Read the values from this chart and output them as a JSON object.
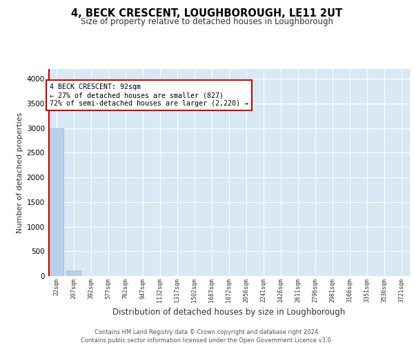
{
  "title": "4, BECK CRESCENT, LOUGHBOROUGH, LE11 2UT",
  "subtitle": "Size of property relative to detached houses in Loughborough",
  "xlabel": "Distribution of detached houses by size in Loughborough",
  "ylabel": "Number of detached properties",
  "bar_color": "#b8d0e8",
  "bar_edge_color": "#90b8d8",
  "categories": [
    "22sqm",
    "207sqm",
    "392sqm",
    "577sqm",
    "762sqm",
    "947sqm",
    "1132sqm",
    "1317sqm",
    "1502sqm",
    "1687sqm",
    "1872sqm",
    "2056sqm",
    "2241sqm",
    "2426sqm",
    "2611sqm",
    "2796sqm",
    "2981sqm",
    "3166sqm",
    "3351sqm",
    "3536sqm",
    "3721sqm"
  ],
  "values": [
    3000,
    110,
    5,
    2,
    1,
    1,
    1,
    0,
    0,
    0,
    0,
    0,
    0,
    0,
    0,
    0,
    0,
    0,
    0,
    0,
    0
  ],
  "ylim": [
    0,
    4200
  ],
  "yticks": [
    0,
    500,
    1000,
    1500,
    2000,
    2500,
    3000,
    3500,
    4000
  ],
  "annotation_title": "4 BECK CRESCENT: 92sqm",
  "annotation_line1": "← 27% of detached houses are smaller (827)",
  "annotation_line2": "72% of semi-detached houses are larger (2,220) →",
  "annotation_color": "#cc0000",
  "plot_bg_color": "#d8e8f4",
  "footer1": "Contains HM Land Registry data © Crown copyright and database right 2024.",
  "footer2": "Contains public sector information licensed under the Open Government Licence v3.0."
}
